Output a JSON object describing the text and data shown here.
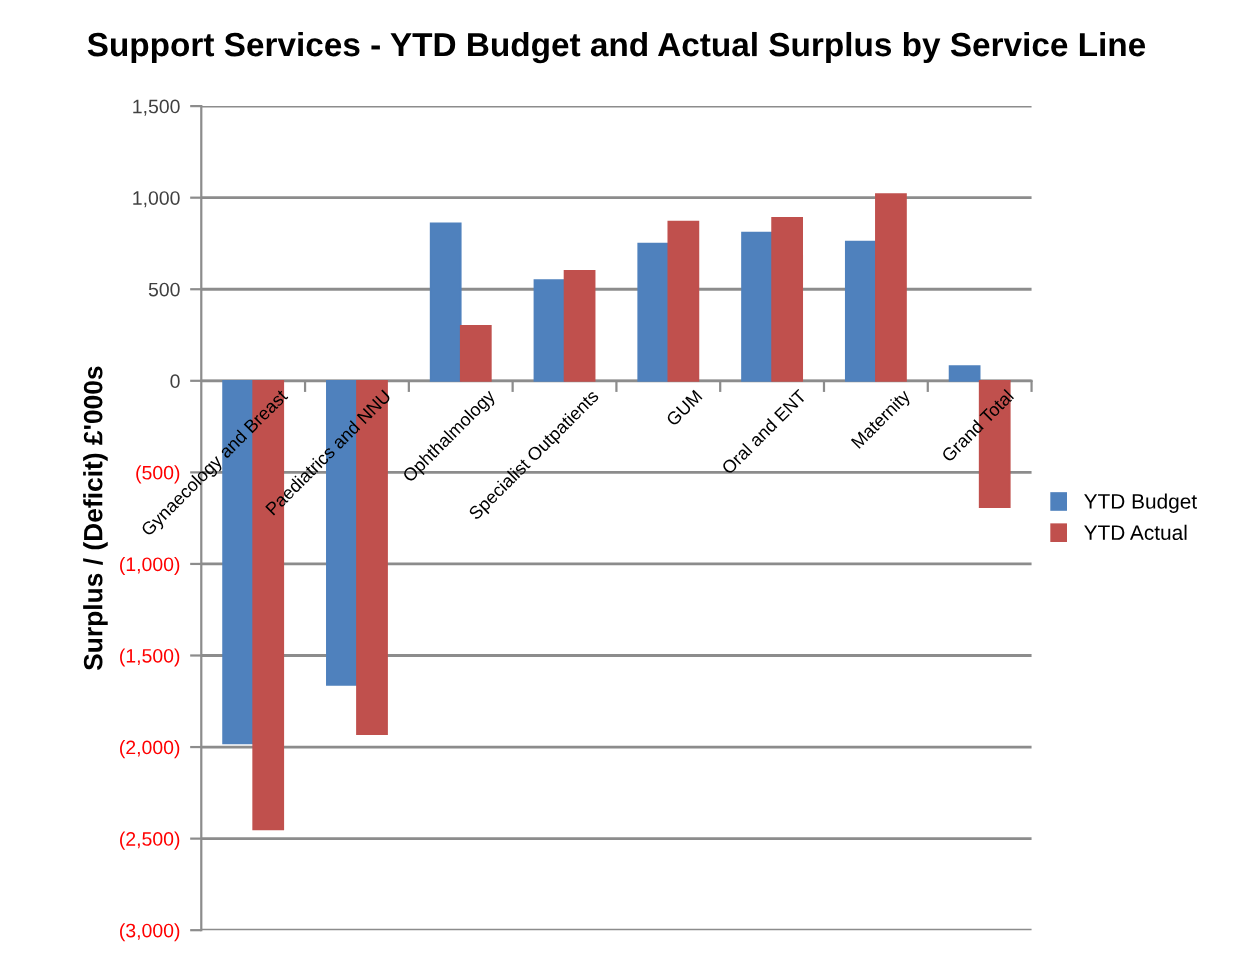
{
  "chart_data": {
    "type": "bar",
    "title": "Support Services - YTD Budget and Actual Surplus by Service Line",
    "ylabel": "Surplus / (Deficit) £'000s",
    "categories": [
      "Gynaecology and Breast",
      "Paediatrics and NNU",
      "Ophthalmology",
      "Specialist Outpatients",
      "GUM",
      "Oral and ENT",
      "Maternity",
      "Grand Total"
    ],
    "series": [
      {
        "name": "YTD Budget",
        "color": "#4f81bd",
        "values": [
          -1980,
          -1660,
          860,
          550,
          750,
          810,
          760,
          80
        ]
      },
      {
        "name": "YTD Actual",
        "color": "#c0504d",
        "values": [
          -2450,
          -1930,
          300,
          600,
          870,
          890,
          1020,
          -690
        ]
      }
    ],
    "ylim": [
      -3000,
      1500
    ],
    "yticks": [
      {
        "value": -3000,
        "label": "(3,000)"
      },
      {
        "value": -2500,
        "label": "(2,500)"
      },
      {
        "value": -2000,
        "label": "(2,000)"
      },
      {
        "value": -1500,
        "label": "(1,500)"
      },
      {
        "value": -1000,
        "label": "(1,000)"
      },
      {
        "value": -500,
        "label": "(500)"
      },
      0,
      {
        "value": 500,
        "label": "500"
      },
      {
        "value": 1000,
        "label": "1,000"
      },
      {
        "value": 1500,
        "label": "1,500"
      }
    ],
    "grid": "y",
    "legend": "right"
  }
}
